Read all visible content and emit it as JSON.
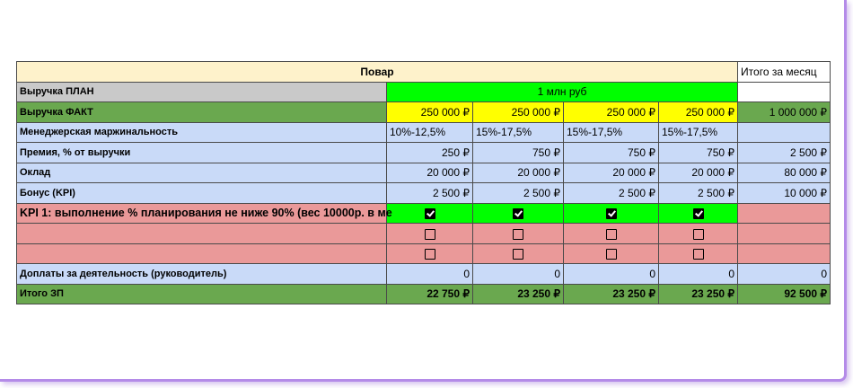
{
  "colors": {
    "header_bg": "#fef2cb",
    "plan_label_bg": "#c9c9c9",
    "green_bright": "#00ff00",
    "green_dark": "#6aa84f",
    "yellow": "#ffff00",
    "blue_light": "#c9daf8",
    "salmon": "#ea9999"
  },
  "table": {
    "header_title": "Повар",
    "header_total": "Итого за месяц",
    "rows": {
      "plan": {
        "label": "Выручка ПЛАН",
        "value": "1 млн руб"
      },
      "fact": {
        "label": "Выручка ФАКТ",
        "values": [
          "250 000 ₽",
          "250 000 ₽",
          "250 000 ₽",
          "250 000 ₽"
        ],
        "total": "1 000 000 ₽"
      },
      "margin": {
        "label": "Менеджерская маржинальность",
        "values": [
          "10%-12,5%",
          "15%-17,5%",
          "15%-17,5%",
          "15%-17,5%"
        ],
        "total": ""
      },
      "premium": {
        "label": "Премия, % от выручки",
        "values": [
          "250 ₽",
          "750 ₽",
          "750 ₽",
          "750 ₽"
        ],
        "total": "2 500 ₽"
      },
      "salary": {
        "label": "Оклад",
        "values": [
          "20 000 ₽",
          "20 000 ₽",
          "20 000 ₽",
          "20 000 ₽"
        ],
        "total": "80 000 ₽"
      },
      "bonus": {
        "label": "Бонус (KPI)",
        "values": [
          "2 500 ₽",
          "2 500 ₽",
          "2 500 ₽",
          "2 500 ₽"
        ],
        "total": "10 000 ₽"
      },
      "kpi1": {
        "label": "KPI 1: выполнение % планирования не ниже 90% (вес 10000р. в ме",
        "checked": [
          true,
          true,
          true,
          true
        ]
      },
      "kpi2": {
        "label": "",
        "checked": [
          false,
          false,
          false,
          false
        ]
      },
      "kpi3": {
        "label": "",
        "checked": [
          false,
          false,
          false,
          false
        ]
      },
      "extra": {
        "label": "Доплаты за деятельность (руководитель)",
        "values": [
          "0",
          "0",
          "0",
          "0"
        ],
        "total": "0"
      },
      "total_zp": {
        "label": "Итого ЗП",
        "values": [
          "22 750 ₽",
          "23 250 ₽",
          "23 250 ₽",
          "23 250 ₽"
        ],
        "total": "92 500 ₽"
      }
    }
  }
}
